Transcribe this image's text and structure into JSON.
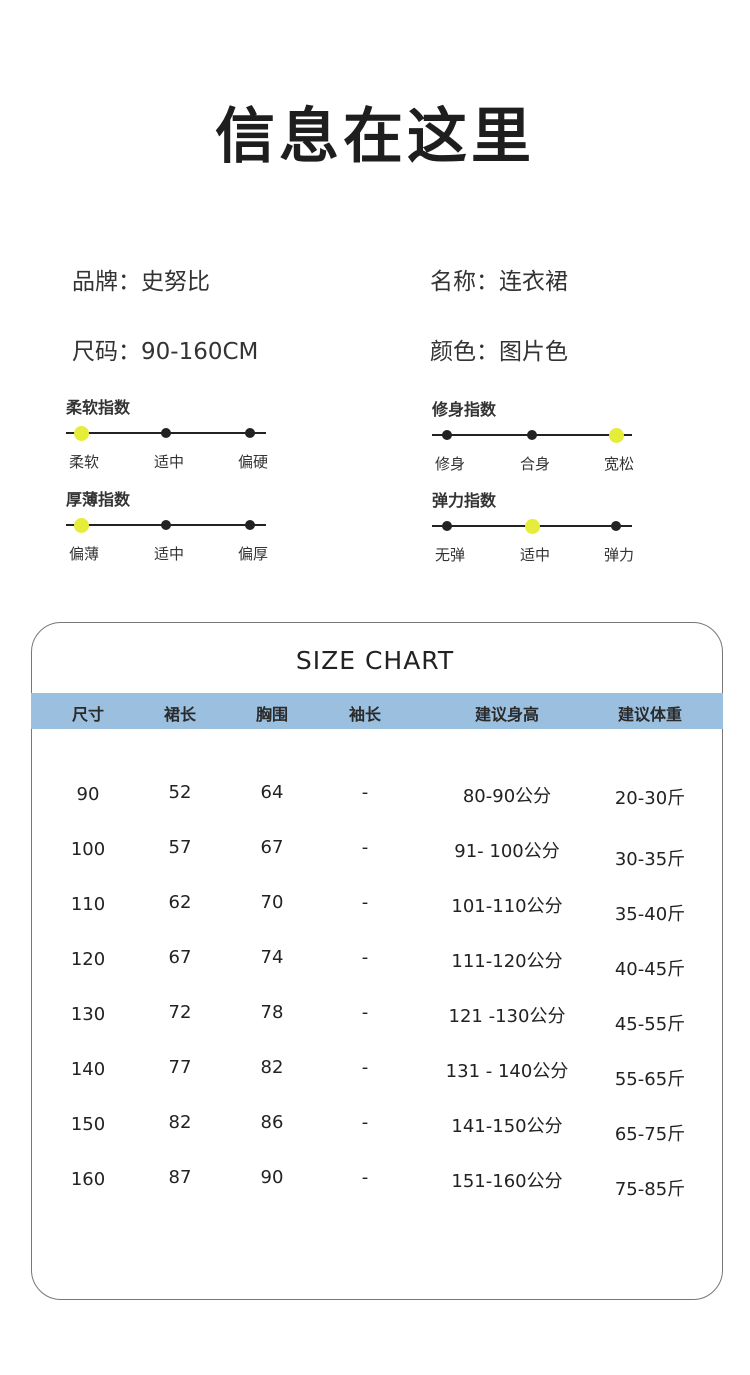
{
  "title": "信息在这里",
  "info": {
    "brand": "品牌：史努比",
    "name": "名称：连衣裙",
    "size": "尺码：90-160CM",
    "color": "颜色：图片色"
  },
  "accent_color": "#e6ec3a",
  "indices": [
    {
      "label": "柔软指数",
      "options": [
        "柔软",
        "适中",
        "偏硬"
      ],
      "selected": 0
    },
    {
      "label": "修身指数",
      "options": [
        "修身",
        "合身",
        "宽松"
      ],
      "selected": 2
    },
    {
      "label": "厚薄指数",
      "options": [
        "偏薄",
        "适中",
        "偏厚"
      ],
      "selected": 0
    },
    {
      "label": "弹力指数",
      "options": [
        "无弹",
        "适中",
        "弹力"
      ],
      "selected": 1
    }
  ],
  "size_chart": {
    "title": "SIZE CHART",
    "header_color": "#9abfdf",
    "columns": [
      "尺寸",
      "裙长",
      "胸围",
      "袖长",
      "建议身高",
      "建议体重"
    ],
    "rows": [
      [
        "90",
        "52",
        "64",
        "-",
        "80-90公分",
        "20-30斤"
      ],
      [
        "100",
        "57",
        "67",
        "-",
        "91- 100公分",
        "30-35斤"
      ],
      [
        "110",
        "62",
        "70",
        "-",
        "101-110公分",
        "35-40斤"
      ],
      [
        "120",
        "67",
        "74",
        "-",
        "111-120公分",
        "40-45斤"
      ],
      [
        "130",
        "72",
        "78",
        "-",
        "121 -130公分",
        "45-55斤"
      ],
      [
        "140",
        "77",
        "82",
        "-",
        "131 - 140公分",
        "55-65斤"
      ],
      [
        "150",
        "82",
        "86",
        "-",
        "141-150公分",
        "65-75斤"
      ],
      [
        "160",
        "87",
        "90",
        "-",
        "151-160公分",
        "75-85斤"
      ]
    ]
  }
}
